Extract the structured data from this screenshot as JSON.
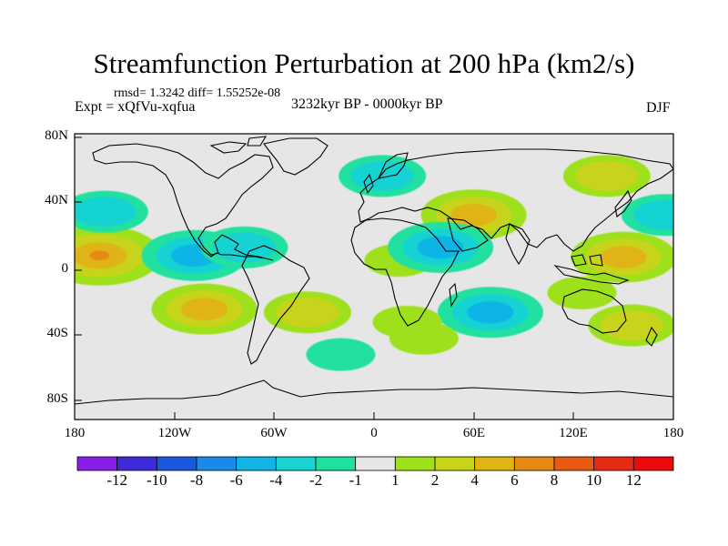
{
  "title": "Streamfunction Perturbation at 200 hPa (km2/s)",
  "stats": "rmsd= 1.3242 diff= 1.55252e-08",
  "experiment": "Expt = xQfVu-xqfua",
  "period": "3232kyr BP - 0000kyr BP",
  "season": "DJF",
  "lat_labels": [
    "80N",
    "40N",
    "0",
    "40S",
    "80S"
  ],
  "lon_labels": [
    "180",
    "120W",
    "60W",
    "0",
    "60E",
    "120E",
    "180"
  ],
  "colorbar": {
    "labels": [
      "-12",
      "-10",
      "-8",
      "-6",
      "-4",
      "-2",
      "-1",
      "1",
      "2",
      "4",
      "6",
      "8",
      "10",
      "12"
    ],
    "colors": [
      "#8a1ee6",
      "#3f2ad9",
      "#1a58dc",
      "#1a8ae8",
      "#10b5e6",
      "#19d3d3",
      "#20e0a0",
      "#e6e6e6",
      "#9ee01a",
      "#c8d41a",
      "#e0b414",
      "#e68a14",
      "#e65a14",
      "#e62a14",
      "#ee0a0a"
    ]
  },
  "chart_data": {
    "type": "heatmap",
    "variable": "Streamfunction Perturbation",
    "level": "200 hPa",
    "units": "km2/s",
    "lon_range": [
      -180,
      180
    ],
    "lat_range": [
      -90,
      90
    ],
    "anomaly_features": [
      {
        "lon": -165,
        "lat": 13,
        "value": 6
      },
      {
        "lon": -162,
        "lat": 40,
        "value": -2
      },
      {
        "lon": -108,
        "lat": 13,
        "value": -4
      },
      {
        "lon": -78,
        "lat": 18,
        "value": -2
      },
      {
        "lon": -102,
        "lat": -20,
        "value": 4
      },
      {
        "lon": -40,
        "lat": -22,
        "value": 2
      },
      {
        "lon": -20,
        "lat": -48,
        "value": -1
      },
      {
        "lon": 5,
        "lat": 62,
        "value": -2
      },
      {
        "lon": 15,
        "lat": 10,
        "value": 1
      },
      {
        "lon": 60,
        "lat": 38,
        "value": 4
      },
      {
        "lon": 40,
        "lat": 18,
        "value": -4
      },
      {
        "lon": 70,
        "lat": -22,
        "value": -4
      },
      {
        "lon": 20,
        "lat": -28,
        "value": 1
      },
      {
        "lon": 30,
        "lat": -38,
        "value": 1
      },
      {
        "lon": 150,
        "lat": 12,
        "value": 4
      },
      {
        "lon": 175,
        "lat": 38,
        "value": -2
      },
      {
        "lon": 140,
        "lat": 62,
        "value": 2
      },
      {
        "lon": 155,
        "lat": -30,
        "value": 2
      },
      {
        "lon": 125,
        "lat": -10,
        "value": 1
      }
    ]
  }
}
